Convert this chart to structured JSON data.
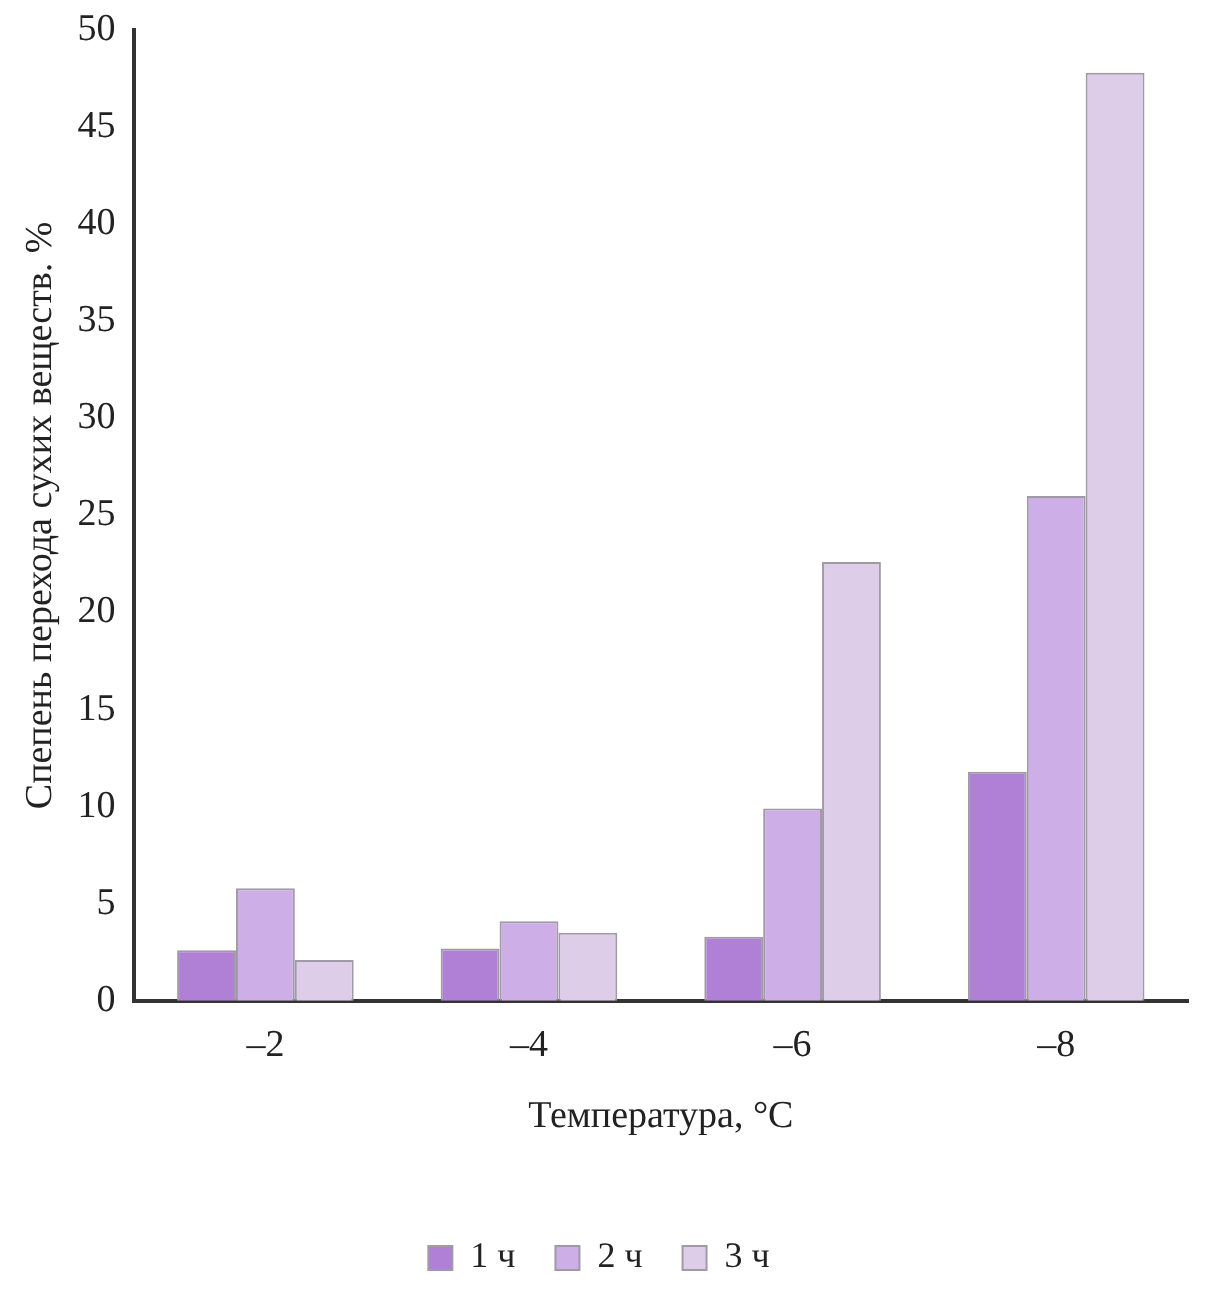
{
  "chart_data": {
    "type": "bar",
    "xlabel": "Температура, °C",
    "ylabel": "Спепень перехода сухих веществ. %",
    "categories": [
      "–2",
      "–4",
      "–6",
      "–8"
    ],
    "series": [
      {
        "name": "1 ч",
        "color": "#b07fd6",
        "values": [
          2.6,
          2.7,
          3.3,
          11.8
        ]
      },
      {
        "name": "2 ч",
        "color": "#ceaee6",
        "values": [
          5.8,
          4.1,
          9.9,
          26.0
        ]
      },
      {
        "name": "3 ч",
        "color": "#ddcde8",
        "values": [
          2.1,
          3.5,
          22.6,
          47.8
        ]
      }
    ],
    "ylim": [
      0,
      50
    ],
    "yticks": [
      0,
      5,
      10,
      15,
      20,
      25,
      30,
      35,
      40,
      45,
      50
    ],
    "grid": false,
    "legend": "bottom"
  }
}
